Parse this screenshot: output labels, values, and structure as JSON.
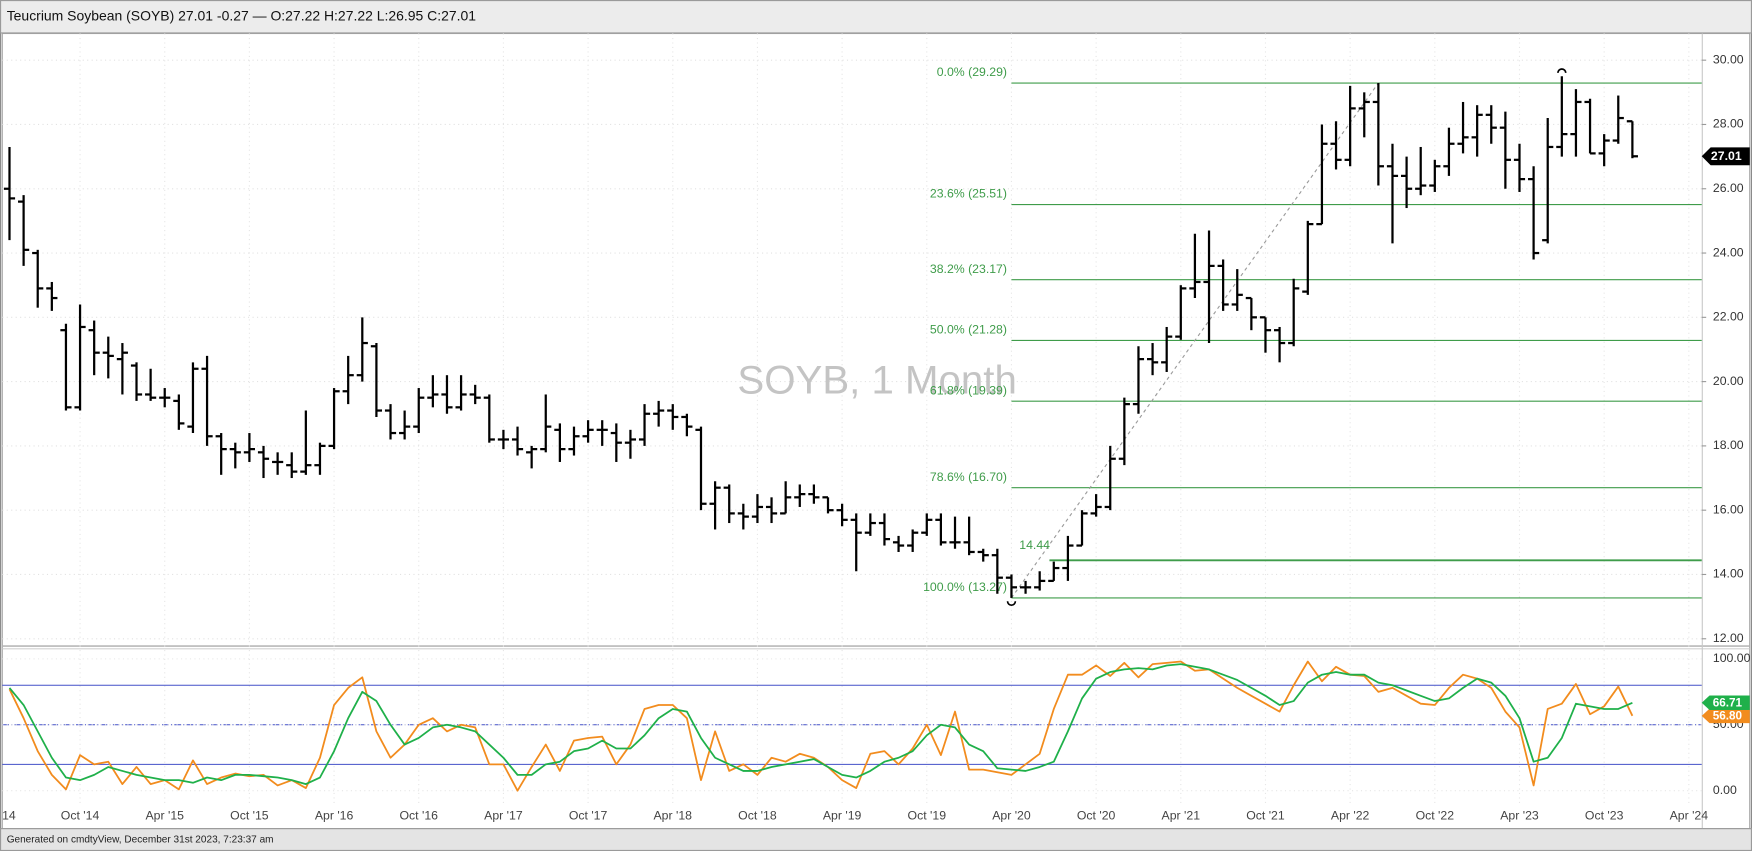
{
  "header": "Teucrium Soybean (SOYB) 27.01 -0.27 — O:27.22 H:27.22 L:26.95 C:27.01",
  "footer": "Generated on cmdtyView, December 31st 2023, 7:23:37 am",
  "chart_data": [
    {
      "type": "ohlc",
      "title": "SOYB, 1 Month",
      "color": "#000000",
      "grid": true,
      "x": [
        "2014-05",
        "2014-06",
        "2014-07",
        "2014-08",
        "2014-09",
        "2014-10",
        "2014-11",
        "2014-12",
        "2015-01",
        "2015-02",
        "2015-03",
        "2015-04",
        "2015-05",
        "2015-06",
        "2015-07",
        "2015-08",
        "2015-09",
        "2015-10",
        "2015-11",
        "2015-12",
        "2016-01",
        "2016-02",
        "2016-03",
        "2016-04",
        "2016-05",
        "2016-06",
        "2016-07",
        "2016-08",
        "2016-09",
        "2016-10",
        "2016-11",
        "2016-12",
        "2017-01",
        "2017-02",
        "2017-03",
        "2017-04",
        "2017-05",
        "2017-06",
        "2017-07",
        "2017-08",
        "2017-09",
        "2017-10",
        "2017-11",
        "2017-12",
        "2018-01",
        "2018-02",
        "2018-03",
        "2018-04",
        "2018-05",
        "2018-06",
        "2018-07",
        "2018-08",
        "2018-09",
        "2018-10",
        "2018-11",
        "2018-12",
        "2019-01",
        "2019-02",
        "2019-03",
        "2019-04",
        "2019-05",
        "2019-06",
        "2019-07",
        "2019-08",
        "2019-09",
        "2019-10",
        "2019-11",
        "2019-12",
        "2020-01",
        "2020-02",
        "2020-03",
        "2020-04",
        "2020-05",
        "2020-06",
        "2020-07",
        "2020-08",
        "2020-09",
        "2020-10",
        "2020-11",
        "2020-12",
        "2021-01",
        "2021-02",
        "2021-03",
        "2021-04",
        "2021-05",
        "2021-06",
        "2021-07",
        "2021-08",
        "2021-09",
        "2021-10",
        "2021-11",
        "2021-12",
        "2022-01",
        "2022-02",
        "2022-03",
        "2022-04",
        "2022-05",
        "2022-06",
        "2022-07",
        "2022-08",
        "2022-09",
        "2022-10",
        "2022-11",
        "2022-12",
        "2023-01",
        "2023-02",
        "2023-03",
        "2023-04",
        "2023-05",
        "2023-06",
        "2023-07",
        "2023-08",
        "2023-09",
        "2023-10",
        "2023-11",
        "2023-12"
      ],
      "open": [
        26.0,
        25.6,
        24.0,
        22.9,
        21.6,
        19.2,
        21.6,
        20.9,
        20.7,
        20.5,
        19.6,
        19.5,
        19.4,
        18.6,
        20.4,
        18.3,
        17.9,
        17.8,
        17.8,
        17.5,
        17.4,
        17.2,
        17.4,
        18.0,
        19.7,
        20.2,
        21.1,
        19.1,
        18.4,
        18.6,
        19.5,
        19.6,
        19.2,
        19.6,
        19.5,
        18.2,
        18.2,
        17.8,
        17.9,
        18.5,
        17.9,
        18.3,
        18.5,
        18.4,
        18.1,
        18.2,
        19.0,
        19.1,
        18.9,
        18.5,
        16.2,
        16.7,
        15.9,
        15.8,
        16.1,
        15.9,
        16.4,
        16.5,
        16.4,
        16.0,
        15.7,
        15.3,
        15.6,
        15.0,
        14.9,
        15.3,
        15.7,
        15.0,
        15.0,
        14.7,
        14.6,
        13.9,
        13.6,
        13.6,
        13.8,
        14.2,
        14.9,
        15.9,
        16.1,
        17.6,
        19.3,
        20.7,
        20.6,
        21.4,
        22.9,
        23.1,
        23.6,
        22.4,
        22.6,
        22.0,
        21.6,
        21.2,
        22.8,
        24.9,
        27.4,
        26.9,
        28.5,
        28.7,
        26.7,
        26.4,
        26.0,
        26.1,
        26.7,
        27.4,
        27.6,
        28.3,
        27.9,
        26.9,
        26.3,
        24.4,
        27.3,
        27.7,
        28.7,
        27.1,
        27.5,
        28.1
      ],
      "high": [
        27.3,
        25.8,
        24.1,
        23.1,
        21.8,
        22.4,
        21.9,
        21.4,
        21.2,
        20.6,
        20.4,
        19.8,
        19.6,
        20.6,
        20.8,
        18.4,
        18.1,
        18.4,
        18.0,
        17.8,
        17.8,
        19.1,
        18.1,
        19.8,
        20.8,
        22.0,
        21.2,
        19.3,
        19.1,
        19.8,
        20.2,
        20.2,
        20.2,
        19.9,
        19.6,
        18.5,
        18.6,
        18.0,
        19.6,
        18.7,
        18.6,
        18.8,
        18.8,
        18.7,
        18.5,
        19.3,
        19.4,
        19.3,
        19.0,
        18.6,
        16.9,
        16.8,
        16.2,
        16.5,
        16.4,
        16.9,
        16.8,
        16.8,
        16.4,
        16.2,
        15.9,
        15.9,
        15.9,
        15.2,
        15.4,
        15.9,
        15.9,
        15.8,
        15.8,
        14.8,
        14.8,
        14.0,
        13.8,
        14.1,
        14.4,
        15.2,
        16.0,
        16.5,
        18.0,
        19.5,
        21.1,
        21.2,
        21.7,
        23.0,
        24.6,
        24.7,
        23.8,
        23.5,
        22.6,
        22.0,
        21.7,
        23.2,
        25.0,
        28.0,
        28.1,
        29.2,
        29.0,
        29.29,
        27.4,
        27.0,
        27.3,
        26.9,
        27.9,
        28.7,
        28.6,
        28.6,
        28.4,
        27.4,
        26.7,
        28.2,
        29.5,
        29.1,
        28.8,
        27.7,
        28.9,
        28.1
      ],
      "low": [
        24.4,
        23.6,
        22.3,
        22.2,
        19.1,
        19.1,
        20.2,
        20.1,
        19.6,
        19.4,
        19.4,
        19.2,
        18.5,
        18.4,
        18.0,
        17.1,
        17.3,
        17.5,
        17.0,
        17.1,
        17.0,
        17.1,
        17.1,
        17.9,
        19.3,
        20.0,
        18.9,
        18.2,
        18.2,
        18.4,
        19.2,
        19.0,
        19.1,
        19.3,
        18.1,
        17.9,
        17.7,
        17.3,
        17.8,
        17.5,
        17.7,
        18.1,
        18.0,
        17.5,
        17.6,
        18.0,
        18.6,
        18.5,
        18.3,
        16.0,
        15.4,
        15.6,
        15.4,
        15.6,
        15.6,
        15.9,
        16.1,
        16.2,
        15.9,
        15.5,
        14.1,
        15.2,
        14.9,
        14.7,
        14.7,
        15.2,
        14.9,
        14.8,
        14.6,
        14.4,
        13.4,
        13.27,
        13.4,
        13.5,
        13.8,
        13.8,
        14.9,
        15.8,
        16.0,
        17.4,
        19.0,
        20.2,
        20.3,
        21.3,
        22.6,
        21.2,
        22.2,
        22.2,
        21.6,
        20.9,
        20.6,
        21.1,
        22.7,
        24.9,
        26.6,
        26.7,
        27.6,
        26.1,
        24.3,
        25.4,
        25.8,
        25.9,
        26.4,
        27.1,
        27.0,
        27.4,
        26.0,
        25.9,
        23.8,
        24.3,
        27.0,
        27.0,
        27.1,
        26.7,
        27.4,
        26.95
      ],
      "close": [
        25.7,
        24.1,
        22.9,
        22.6,
        19.2,
        21.7,
        20.9,
        20.8,
        20.9,
        19.6,
        19.5,
        19.5,
        18.7,
        20.4,
        18.3,
        17.9,
        17.8,
        17.9,
        17.6,
        17.5,
        17.2,
        17.4,
        18.0,
        19.7,
        20.2,
        21.2,
        19.1,
        18.4,
        18.6,
        19.5,
        19.6,
        19.2,
        19.6,
        19.5,
        18.2,
        18.2,
        17.9,
        17.9,
        18.6,
        17.9,
        18.3,
        18.5,
        18.5,
        18.1,
        18.2,
        19.0,
        19.1,
        18.9,
        18.6,
        16.2,
        16.7,
        15.9,
        15.8,
        16.1,
        15.9,
        16.4,
        16.5,
        16.4,
        16.0,
        15.7,
        15.3,
        15.6,
        15.1,
        14.9,
        15.3,
        15.7,
        15.0,
        15.0,
        14.7,
        14.6,
        13.9,
        13.6,
        13.6,
        13.8,
        14.2,
        14.9,
        15.9,
        16.1,
        17.6,
        19.3,
        20.7,
        20.6,
        21.4,
        22.9,
        23.1,
        23.6,
        22.4,
        22.7,
        22.0,
        21.6,
        21.2,
        22.9,
        24.9,
        27.4,
        26.9,
        28.5,
        28.7,
        26.7,
        26.4,
        26.0,
        26.1,
        26.7,
        27.4,
        27.6,
        28.3,
        27.9,
        26.9,
        26.3,
        24.0,
        27.3,
        27.7,
        28.7,
        27.1,
        27.5,
        28.2,
        27.01
      ],
      "ylim": [
        11.79,
        30.83
      ],
      "yticks": [
        {
          "value": 12,
          "label": "12.00"
        },
        {
          "value": 14,
          "label": "14.00"
        },
        {
          "value": 16,
          "label": "16.00"
        },
        {
          "value": 18,
          "label": "18.00"
        },
        {
          "value": 20,
          "label": "20.00"
        },
        {
          "value": 22,
          "label": "22.00"
        },
        {
          "value": 24,
          "label": "24.00"
        },
        {
          "value": 26,
          "label": "26.00"
        },
        {
          "value": 28,
          "label": "28.00"
        },
        {
          "value": 30,
          "label": "30.00"
        }
      ],
      "xticks": [
        {
          "value": "2014-04",
          "label": "14"
        },
        {
          "value": "2014-10",
          "label": "Oct '14"
        },
        {
          "value": "2015-04",
          "label": "Apr '15"
        },
        {
          "value": "2015-10",
          "label": "Oct '15"
        },
        {
          "value": "2016-04",
          "label": "Apr '16"
        },
        {
          "value": "2016-10",
          "label": "Oct '16"
        },
        {
          "value": "2017-04",
          "label": "Apr '17"
        },
        {
          "value": "2017-10",
          "label": "Oct '17"
        },
        {
          "value": "2018-04",
          "label": "Apr '18"
        },
        {
          "value": "2018-10",
          "label": "Oct '18"
        },
        {
          "value": "2019-04",
          "label": "Apr '19"
        },
        {
          "value": "2019-10",
          "label": "Oct '19"
        },
        {
          "value": "2020-04",
          "label": "Apr '20"
        },
        {
          "value": "2020-10",
          "label": "Oct '20"
        },
        {
          "value": "2021-04",
          "label": "Apr '21"
        },
        {
          "value": "2021-10",
          "label": "Oct '21"
        },
        {
          "value": "2022-04",
          "label": "Apr '22"
        },
        {
          "value": "2022-10",
          "label": "Oct '22"
        },
        {
          "value": "2023-04",
          "label": "Apr '23"
        },
        {
          "value": "2023-10",
          "label": "Oct '23"
        },
        {
          "value": "2024-04",
          "label": "Apr '24"
        }
      ],
      "fib_color": "#3f9c4a",
      "fib_levels": [
        {
          "value": 29.29,
          "label": "0.0% (29.29)"
        },
        {
          "value": 25.51,
          "label": "23.6% (25.51)"
        },
        {
          "value": 23.17,
          "label": "38.2% (23.17)"
        },
        {
          "value": 21.28,
          "label": "50.0% (21.28)"
        },
        {
          "value": 19.39,
          "label": "61.8% (19.39)"
        },
        {
          "value": 16.7,
          "label": "78.6% (16.70)"
        },
        {
          "value": 13.27,
          "label": "100.0% (13.27)"
        }
      ],
      "level": 14.44
    },
    {
      "type": "line",
      "grid": true,
      "band_color": "#4350c8",
      "bands": [
        80,
        50,
        20
      ],
      "series": [
        {
          "color": "#f28c1e",
          "last_label": "56.80",
          "values": [
            77,
            55,
            30,
            12,
            1,
            27,
            20,
            22,
            5,
            18,
            5,
            8,
            1,
            23,
            5,
            10,
            13,
            11,
            12,
            4,
            8,
            2,
            25,
            65,
            78,
            86,
            45,
            25,
            35,
            50,
            55,
            45,
            50,
            48,
            20,
            20,
            0,
            18,
            35,
            15,
            38,
            40,
            41,
            20,
            35,
            62,
            65,
            65,
            55,
            8,
            45,
            15,
            20,
            12,
            25,
            22,
            28,
            25,
            18,
            8,
            2,
            28,
            30,
            20,
            32,
            50,
            27,
            60,
            16,
            16,
            14,
            12,
            20,
            28,
            62,
            88,
            88,
            95,
            87,
            97,
            86,
            96,
            97,
            98,
            91,
            92,
            85,
            78,
            72,
            66,
            60,
            80,
            98,
            83,
            94,
            88,
            87,
            75,
            78,
            72,
            66,
            65,
            78,
            88,
            85,
            78,
            60,
            48,
            4,
            62,
            66,
            81,
            58,
            64,
            79,
            56.8
          ]
        },
        {
          "color": "#1fb04a",
          "last_label": "66.71",
          "values": [
            78,
            65,
            45,
            25,
            10,
            8,
            12,
            18,
            15,
            12,
            10,
            8,
            8,
            6,
            10,
            8,
            12,
            12,
            11,
            10,
            8,
            5,
            10,
            30,
            55,
            75,
            68,
            50,
            35,
            40,
            48,
            50,
            48,
            45,
            35,
            25,
            12,
            12,
            20,
            22,
            30,
            32,
            38,
            32,
            32,
            42,
            55,
            62,
            60,
            40,
            25,
            20,
            15,
            15,
            18,
            20,
            22,
            24,
            18,
            12,
            10,
            15,
            22,
            25,
            30,
            42,
            50,
            48,
            35,
            30,
            17,
            16,
            15,
            18,
            22,
            45,
            70,
            85,
            90,
            92,
            93,
            92,
            95,
            96,
            94,
            92,
            88,
            84,
            78,
            72,
            65,
            68,
            82,
            88,
            90,
            88,
            88,
            82,
            80,
            76,
            72,
            68,
            70,
            78,
            85,
            82,
            72,
            55,
            22,
            25,
            40,
            66,
            64,
            62,
            62,
            66.71
          ]
        }
      ],
      "ylim": [
        -28.8,
        107.6
      ],
      "yticks": [
        {
          "value": 100,
          "label": "100.00"
        },
        {
          "value": 50,
          "label": "50.00"
        },
        {
          "value": 0,
          "label": "0.00"
        }
      ]
    }
  ]
}
